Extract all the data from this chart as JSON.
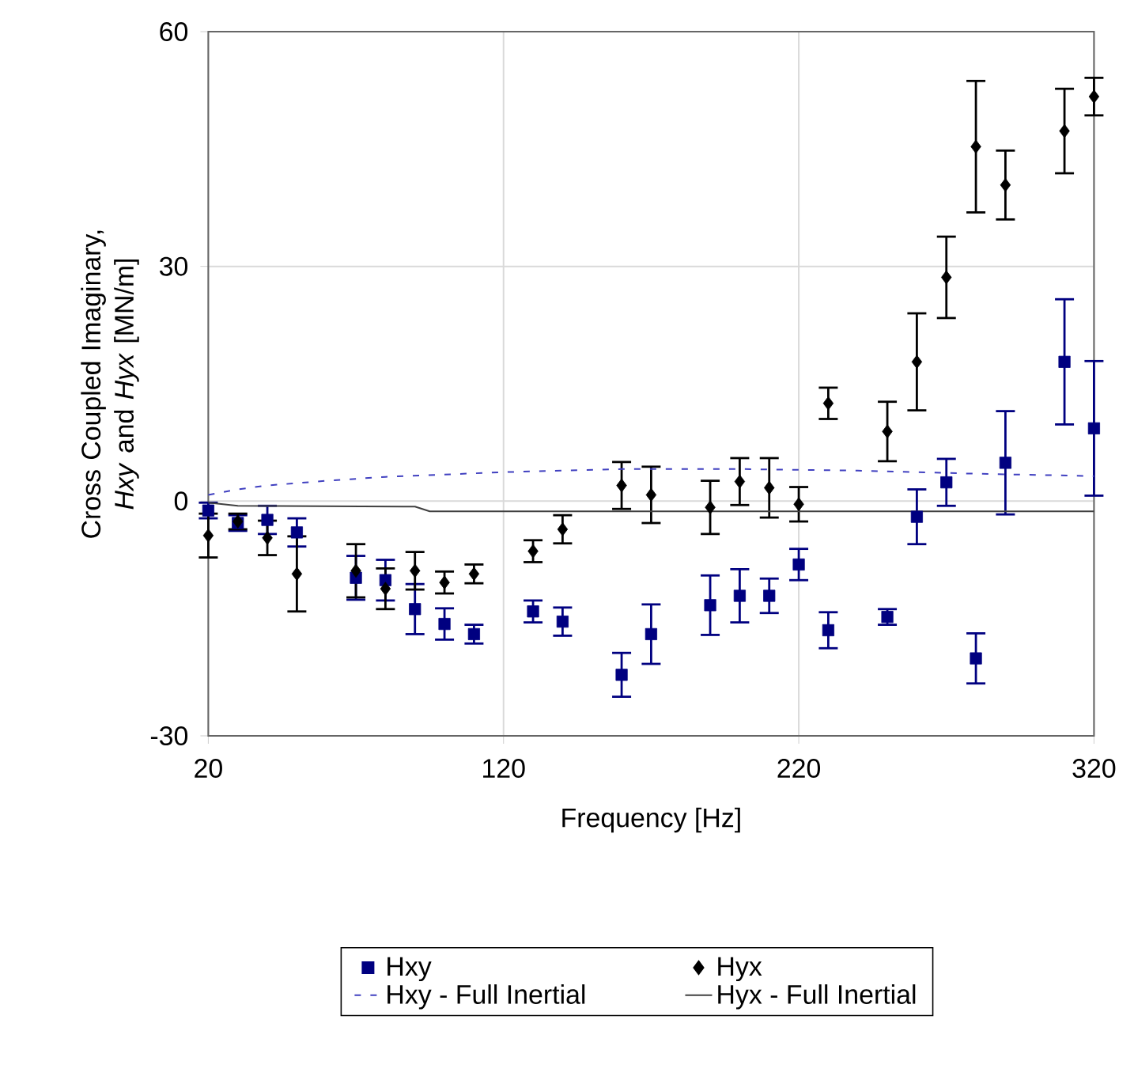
{
  "chart_data": {
    "type": "scatter",
    "xlabel": "Frequency [Hz]",
    "ylabel": "Cross Coupled Imaginary, *Hxy* and *Hyx* [MN/m]",
    "xlim": [
      20,
      320
    ],
    "xticks": [
      20,
      120,
      220,
      320
    ],
    "ylim": [
      -30,
      60
    ],
    "yticks": [
      -30,
      0,
      30,
      60
    ],
    "grid": true,
    "legend": "bottom",
    "series": [
      {
        "name": "Hxy",
        "marker": "square",
        "color": "#000080",
        "x": [
          20,
          30,
          40,
          50,
          70,
          80,
          90,
          100,
          110,
          130,
          140,
          160,
          170,
          190,
          200,
          210,
          220,
          230,
          250,
          260,
          270,
          280,
          290,
          310,
          320
        ],
        "values": [
          -1.2,
          -2.8,
          -2.4,
          -4.0,
          -9.8,
          -10.1,
          -13.8,
          -15.7,
          -17.0,
          -14.1,
          -15.4,
          -22.2,
          -17.0,
          -13.3,
          -12.1,
          -12.1,
          -8.1,
          -16.5,
          -14.8,
          -2.0,
          2.4,
          -20.1,
          4.9,
          17.8,
          9.3
        ],
        "errors": [
          1.0,
          1.0,
          1.8,
          1.8,
          2.8,
          2.6,
          3.2,
          2.0,
          1.2,
          1.4,
          1.8,
          2.8,
          3.8,
          3.8,
          3.4,
          2.2,
          2.0,
          2.3,
          1.0,
          3.5,
          3.0,
          3.2,
          6.6,
          8.0,
          8.6
        ]
      },
      {
        "name": "Hyx",
        "marker": "diamond",
        "color": "#000000",
        "x": [
          20,
          30,
          40,
          50,
          70,
          80,
          90,
          100,
          110,
          130,
          140,
          160,
          170,
          190,
          200,
          210,
          220,
          230,
          250,
          260,
          270,
          280,
          290,
          310,
          320
        ],
        "values": [
          -4.4,
          -2.6,
          -4.7,
          -9.3,
          -8.9,
          -11.2,
          -8.9,
          -10.4,
          -9.3,
          -6.4,
          -3.6,
          2.0,
          0.8,
          -0.8,
          2.5,
          1.7,
          -0.4,
          12.5,
          8.9,
          17.8,
          28.6,
          45.3,
          40.4,
          47.3,
          51.7
        ],
        "errors": [
          2.8,
          1.0,
          2.2,
          4.8,
          3.4,
          2.6,
          2.4,
          1.4,
          1.2,
          1.4,
          1.8,
          3.0,
          3.6,
          3.4,
          3.0,
          3.8,
          2.2,
          2.0,
          3.8,
          6.2,
          5.2,
          8.4,
          4.4,
          5.4,
          2.4
        ]
      },
      {
        "name": "Hxy - Full Inertial",
        "type": "line",
        "line_style": "dashed",
        "color": "#4040c0",
        "x": [
          20,
          30,
          40,
          60,
          80,
          100,
          120,
          160,
          200,
          240,
          280,
          320
        ],
        "values": [
          0.8,
          1.5,
          2.0,
          2.6,
          3.1,
          3.4,
          3.7,
          4.1,
          4.1,
          3.9,
          3.5,
          3.2
        ]
      },
      {
        "name": "Hyx - Full Inertial",
        "type": "line",
        "line_style": "solid",
        "color": "#404040",
        "x": [
          20,
          30,
          90,
          95,
          320
        ],
        "values": [
          -0.2,
          -0.6,
          -0.7,
          -1.3,
          -1.3
        ]
      }
    ]
  }
}
